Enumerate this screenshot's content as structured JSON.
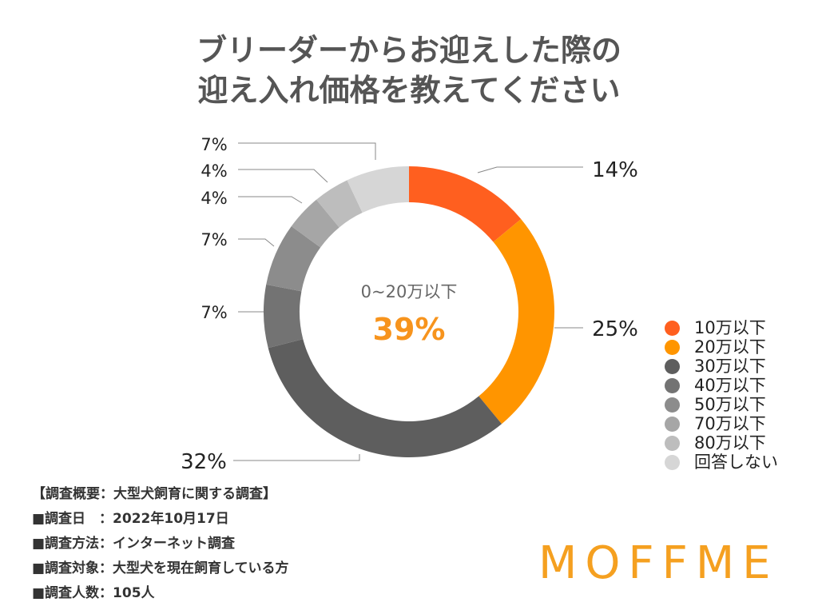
{
  "title": {
    "line1": "ブリーダーからお迎えした際の",
    "line2": "迎え入れ価格を教えてください"
  },
  "center": {
    "label": "0~20万以下",
    "value": "39%",
    "value_color": "#F7941D"
  },
  "chart_data": {
    "type": "pie",
    "title": "ブリーダーからお迎えした際の迎え入れ価格を教えてください",
    "categories": [
      "10万以下",
      "20万以下",
      "30万以下",
      "40万以下",
      "50万以下",
      "70万以下",
      "80万以下",
      "回答しない"
    ],
    "values": [
      14,
      25,
      32,
      7,
      7,
      4,
      4,
      7
    ],
    "value_labels": [
      "14%",
      "25%",
      "32%",
      "7%",
      "7%",
      "4%",
      "4%",
      "7%"
    ],
    "colors": [
      "#FF5F1F",
      "#FF9500",
      "#5E5E5E",
      "#737373",
      "#8C8C8C",
      "#A6A6A6",
      "#BDBDBD",
      "#D6D6D6"
    ],
    "legend": "right"
  },
  "survey": [
    "【調査概要：大型犬飼育に関する調査】",
    "■調査日　：2022年10月17日",
    "■調査方法：インターネット調査",
    "■調査対象：大型犬を現在飼育している方",
    "■調査人数：105人"
  ],
  "logo": "MOFFME"
}
